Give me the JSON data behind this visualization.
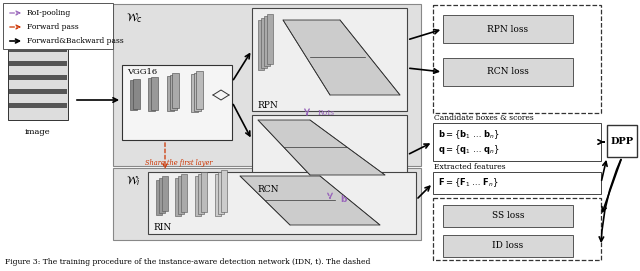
{
  "figsize": [
    6.4,
    2.71
  ],
  "dpi": 100,
  "white": "#ffffff",
  "light_gray": "#d8d8d8",
  "bg_gray": "#e0e0e0",
  "arrow_black": "#000000",
  "arrow_red": "#cc3300",
  "arrow_purple": "#9966bb",
  "caption": "Figure 3: The training procedure of the instance-aware detection network (IDN, t). The dashed",
  "wc_label": "$\\mathcal{W}_c$",
  "wi_label": "$\\mathcal{W}_i$"
}
